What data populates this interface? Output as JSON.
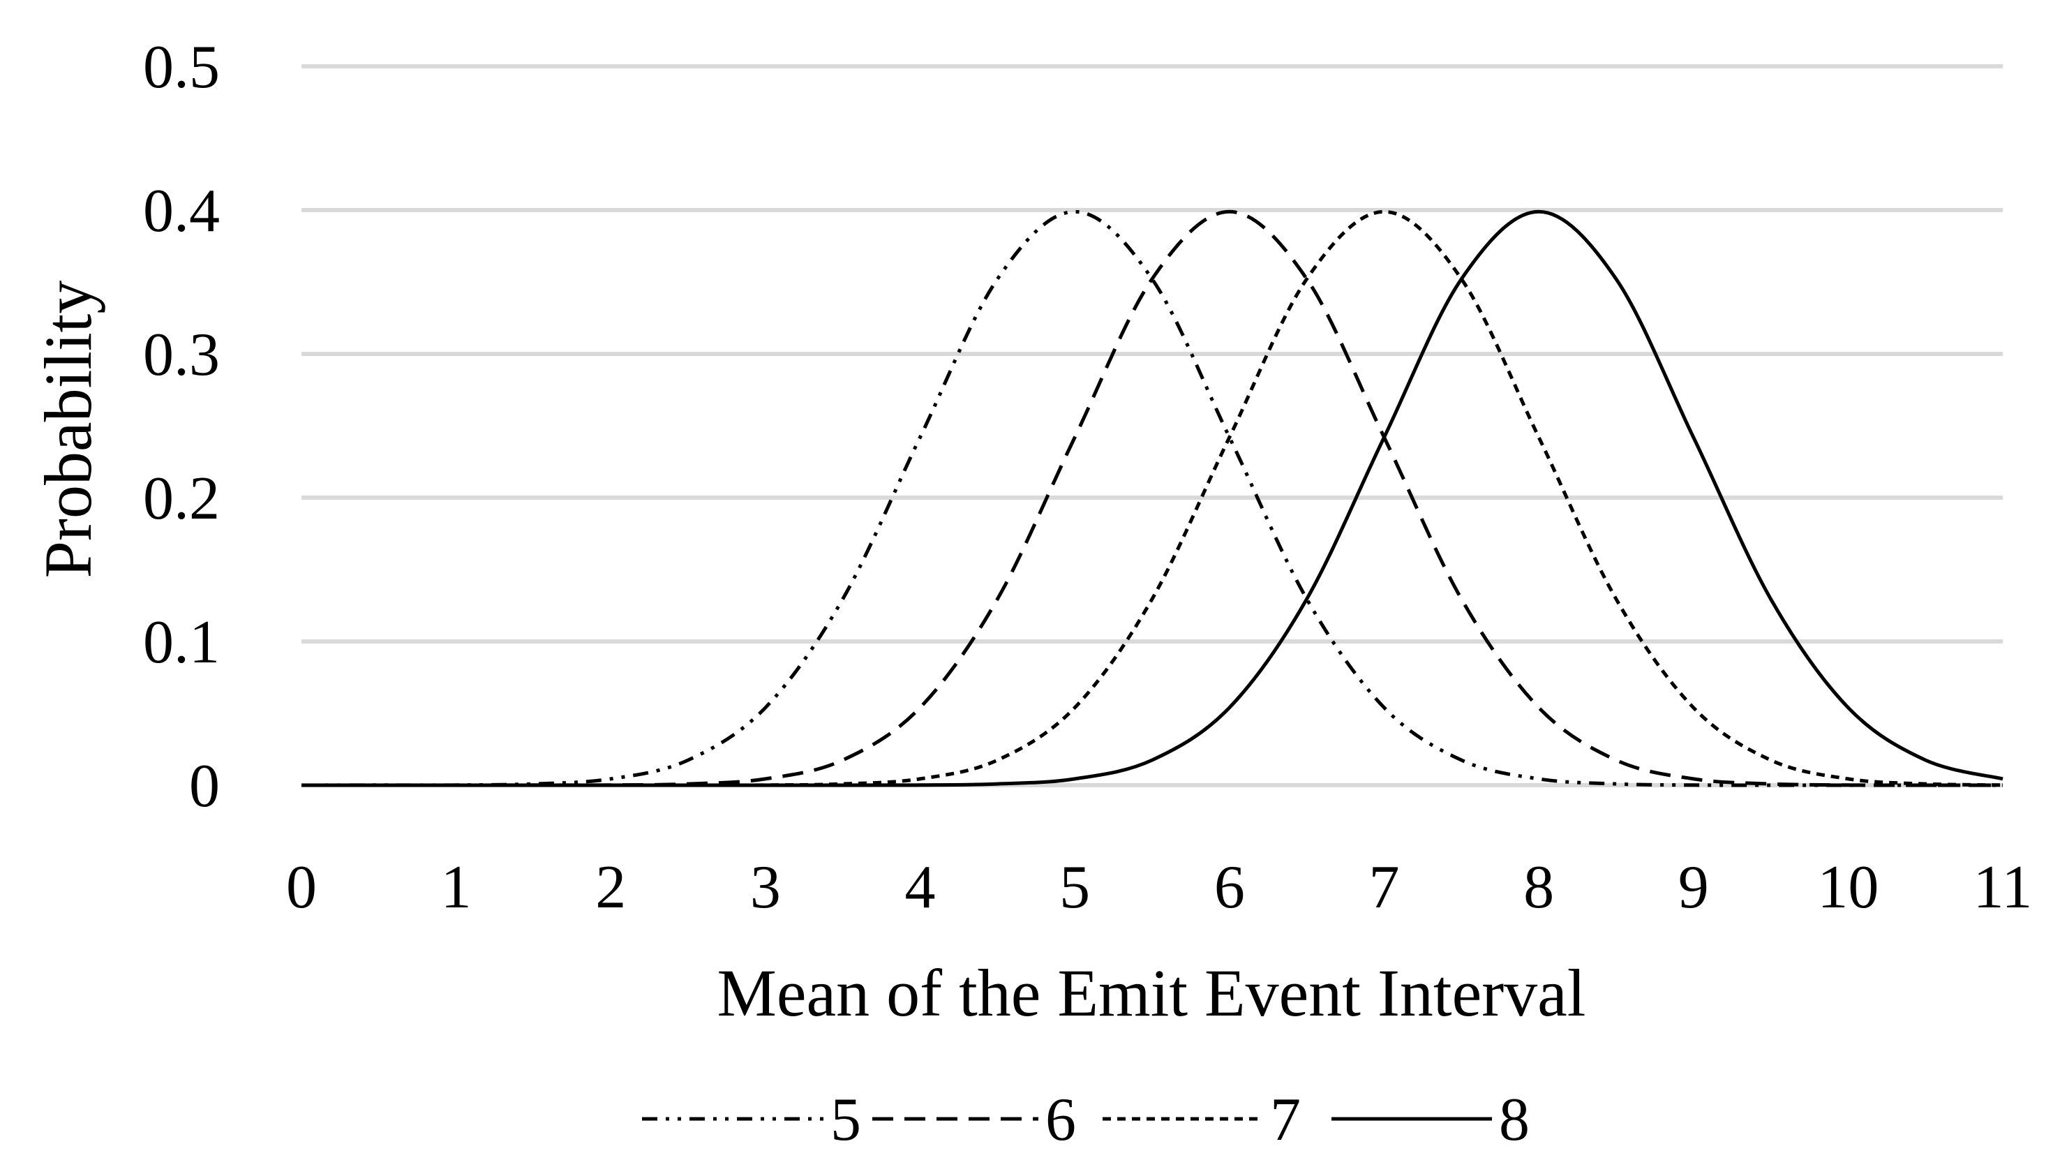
{
  "chart_data": {
    "type": "line",
    "title": "",
    "xlabel": "Mean of the Emit Event Interval",
    "ylabel": "Probability",
    "xlim": [
      0,
      11
    ],
    "ylim": [
      0,
      0.5
    ],
    "x_ticks": [
      0,
      1,
      2,
      3,
      4,
      5,
      6,
      7,
      8,
      9,
      10,
      11
    ],
    "x_tick_labels": [
      "0",
      "1",
      "2",
      "3",
      "4",
      "5",
      "6",
      "7",
      "8",
      "9",
      "10",
      "11"
    ],
    "y_ticks": [
      0,
      0.1,
      0.2,
      0.3,
      0.4,
      0.5
    ],
    "y_tick_labels": [
      "0",
      "0.1",
      "0.2",
      "0.3",
      "0.4",
      "0.5"
    ],
    "grid": "horizontal",
    "legend_position": "bottom-center",
    "x": [
      0,
      0.5,
      1,
      1.5,
      2,
      2.5,
      3,
      3.5,
      4,
      4.5,
      5,
      5.5,
      6,
      6.5,
      7,
      7.5,
      8,
      8.5,
      9,
      9.5,
      10,
      10.5,
      11
    ],
    "series": [
      {
        "name": "5",
        "line_style": "dash-dot-dot",
        "values": [
          0.0,
          0.0001,
          0.0001,
          0.0009,
          0.0044,
          0.0175,
          0.054,
          0.1295,
          0.242,
          0.3521,
          0.3989,
          0.3521,
          0.242,
          0.1295,
          0.054,
          0.0175,
          0.0044,
          0.0009,
          0.0001,
          0.0,
          0.0,
          0.0,
          0.0
        ]
      },
      {
        "name": "6",
        "line_style": "dashed",
        "values": [
          0.0,
          0.0,
          0.0,
          0.0001,
          0.0001,
          0.0009,
          0.0044,
          0.0175,
          0.054,
          0.1295,
          0.242,
          0.3521,
          0.3989,
          0.3521,
          0.242,
          0.1295,
          0.054,
          0.0175,
          0.0044,
          0.0009,
          0.0001,
          0.0,
          0.0
        ]
      },
      {
        "name": "7",
        "line_style": "short-dashed",
        "values": [
          0.0,
          0.0,
          0.0,
          0.0,
          0.0,
          0.0,
          0.0001,
          0.0009,
          0.0044,
          0.0175,
          0.054,
          0.1295,
          0.242,
          0.3521,
          0.3989,
          0.3521,
          0.242,
          0.1295,
          0.054,
          0.0175,
          0.0044,
          0.0009,
          0.0001
        ]
      },
      {
        "name": "8",
        "line_style": "solid",
        "values": [
          0.0,
          0.0,
          0.0,
          0.0,
          0.0,
          0.0,
          0.0,
          0.0,
          0.0001,
          0.0009,
          0.0044,
          0.0175,
          0.054,
          0.1295,
          0.242,
          0.3521,
          0.3989,
          0.3521,
          0.242,
          0.1295,
          0.054,
          0.0175,
          0.0044
        ]
      }
    ],
    "colors": {
      "line": "#000000",
      "grid": "#d9d9d9",
      "text": "#000000",
      "background": "#ffffff"
    }
  }
}
